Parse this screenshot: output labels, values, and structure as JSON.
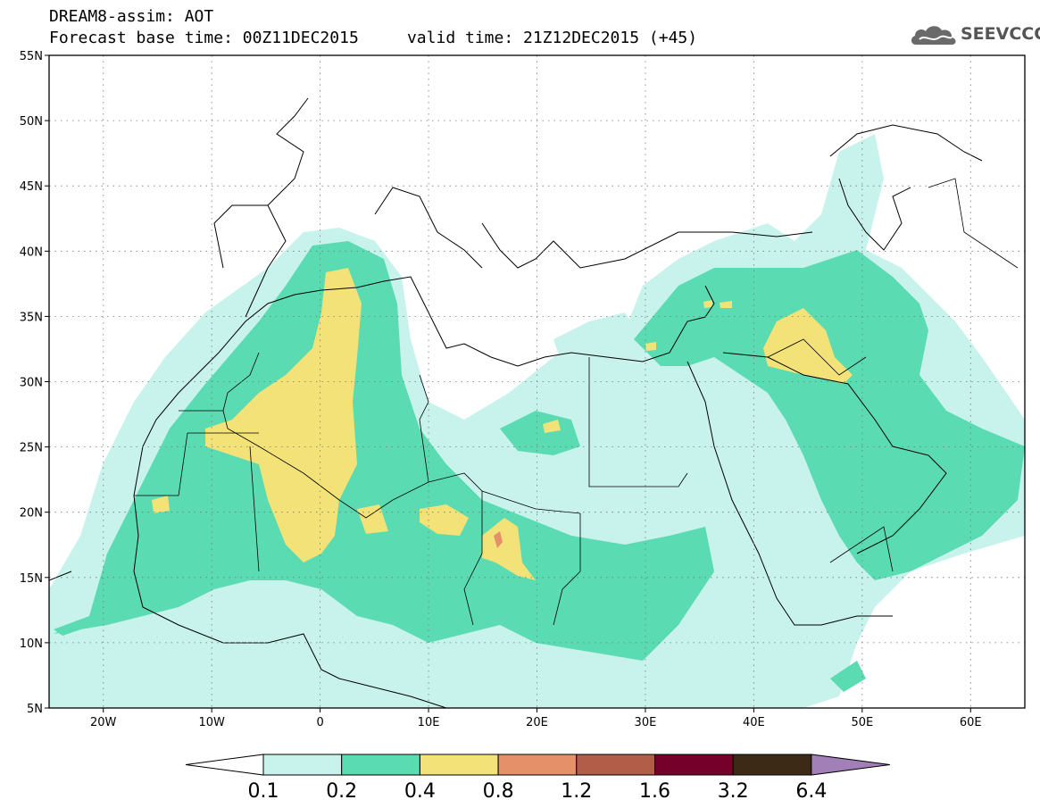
{
  "header": {
    "title_line1": "DREAM8-assim: AOT",
    "title_line2": "Forecast base time: 00Z11DEC2015     valid time: 21Z12DEC2015 (+45)"
  },
  "logo": {
    "text": "SEEVCCC",
    "icon": "cloud-icon"
  },
  "axes": {
    "lat_ticks": [
      {
        "value": 55,
        "label": "55N"
      },
      {
        "value": 50,
        "label": "50N"
      },
      {
        "value": 45,
        "label": "45N"
      },
      {
        "value": 40,
        "label": "40N"
      },
      {
        "value": 35,
        "label": "35N"
      },
      {
        "value": 30,
        "label": "30N"
      },
      {
        "value": 25,
        "label": "25N"
      },
      {
        "value": 20,
        "label": "20N"
      },
      {
        "value": 15,
        "label": "15N"
      },
      {
        "value": 10,
        "label": "10N"
      },
      {
        "value": 5,
        "label": "5N"
      }
    ],
    "lon_ticks": [
      {
        "value": -20,
        "label": "20W"
      },
      {
        "value": -10,
        "label": "10W"
      },
      {
        "value": 0,
        "label": "0"
      },
      {
        "value": 10,
        "label": "10E"
      },
      {
        "value": 20,
        "label": "20E"
      },
      {
        "value": 30,
        "label": "30E"
      },
      {
        "value": 40,
        "label": "40E"
      },
      {
        "value": 50,
        "label": "50E"
      },
      {
        "value": 60,
        "label": "60E"
      }
    ],
    "lon_range": [
      -25,
      65
    ],
    "lat_range": [
      5,
      55
    ],
    "grid": true
  },
  "colorbar": {
    "colors": [
      "#c8f2ec",
      "#5bdbb2",
      "#f2e277",
      "#e6906a",
      "#b15d47",
      "#75002a",
      "#3c2a16",
      "#a27fb7"
    ],
    "low_extend_color": "#ffffff",
    "labels": [
      "0.1",
      "0.2",
      "0.4",
      "0.8",
      "1.2",
      "1.6",
      "3.2",
      "6.4"
    ]
  }
}
